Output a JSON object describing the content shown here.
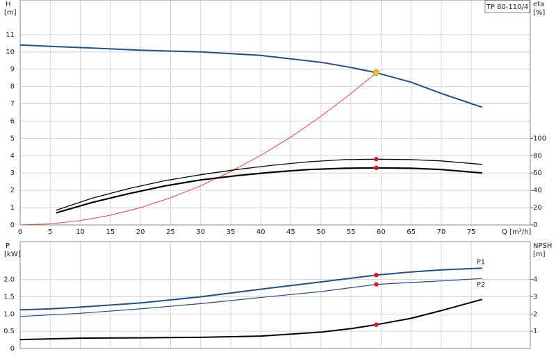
{
  "chart_data": [
    {
      "type": "line",
      "title": "TP 80-110/4",
      "x_label": "Q [m³/h]",
      "y_label": "H",
      "y_unit": "[m]",
      "y2_label": "eta",
      "y2_unit": "[%]",
      "xlim": [
        0,
        84.8
      ],
      "xticks": [
        0,
        5,
        10,
        15,
        20,
        25,
        30,
        35,
        40,
        45,
        50,
        55,
        60,
        65,
        70,
        75
      ],
      "ylim": [
        0,
        13
      ],
      "yticks": [
        0,
        1,
        2,
        3,
        4,
        5,
        6,
        7,
        8,
        9,
        10,
        11
      ],
      "y2lim": [
        0,
        260
      ],
      "y2ticks": [
        0,
        20,
        40,
        60,
        80,
        100
      ],
      "grid": true,
      "series": [
        {
          "color": "#1f4e8c",
          "width": 2,
          "x": [
            0,
            5,
            10,
            20,
            30,
            40,
            50,
            55,
            59.2,
            65,
            70,
            76.8
          ],
          "values": [
            10.4,
            10.32,
            10.25,
            10.1,
            10.0,
            9.8,
            9.4,
            9.1,
            8.8,
            8.25,
            7.6,
            6.8
          ]
        },
        {
          "color": "#ff3b30",
          "width": 1,
          "x": [
            0,
            5,
            10,
            15,
            20,
            25,
            30,
            35,
            40,
            45,
            50,
            55,
            59.2
          ],
          "values": [
            0,
            0.06,
            0.25,
            0.56,
            1.0,
            1.57,
            2.26,
            3.08,
            4.02,
            5.08,
            6.28,
            7.6,
            8.8
          ]
        },
        {
          "color": "#000000",
          "width": 1.3,
          "axis": "y2",
          "x": [
            6,
            12,
            18,
            24,
            30,
            36,
            42,
            48,
            54,
            59.2,
            65,
            70,
            76.8
          ],
          "values": [
            17,
            31,
            42,
            51,
            58,
            64,
            69,
            73,
            75.5,
            76,
            75.5,
            74,
            70
          ]
        },
        {
          "color": "#000000",
          "width": 2.2,
          "axis": "y2",
          "x": [
            6,
            12,
            18,
            24,
            30,
            36,
            42,
            48,
            54,
            59.2,
            65,
            70,
            76.8
          ],
          "values": [
            14,
            26,
            36,
            45,
            52,
            57,
            61,
            64,
            65.5,
            66,
            65.5,
            64,
            60
          ]
        }
      ],
      "points": [
        {
          "x": 59.2,
          "y": 8.8,
          "color": "#f5c518"
        },
        {
          "x": 59.2,
          "y": 76,
          "color": "#e8141c",
          "axis": "y2"
        },
        {
          "x": 59.2,
          "y": 66,
          "color": "#e8141c",
          "axis": "y2"
        }
      ]
    },
    {
      "type": "line",
      "y_label": "P",
      "y_unit": "[kW]",
      "y2_label": "NPSH",
      "y2_unit": "[m]",
      "xlim": [
        0,
        84.8
      ],
      "xticks": [
        0,
        5,
        10,
        15,
        20,
        25,
        30,
        35,
        40,
        45,
        50,
        55,
        60,
        65,
        70,
        75
      ],
      "ylim": [
        0,
        3.1
      ],
      "yticks": [
        0,
        0.5,
        {
          "value": 1,
          "label": "1.0"
        },
        1.5,
        {
          "value": 2,
          "label": "2.0"
        }
      ],
      "y2lim": [
        0,
        6.2
      ],
      "y2ticks": [
        1,
        2,
        3,
        4
      ],
      "grid": true,
      "series": [
        {
          "name": "P1",
          "color": "#1f4e8c",
          "width": 2,
          "x": [
            0,
            5,
            10,
            20,
            30,
            40,
            50,
            59.2,
            65,
            70,
            76.8
          ],
          "values": [
            1.12,
            1.15,
            1.2,
            1.32,
            1.5,
            1.72,
            1.93,
            2.13,
            2.22,
            2.28,
            2.33
          ]
        },
        {
          "name": "P2",
          "color": "#1f4e8c",
          "width": 1.2,
          "x": [
            0,
            10,
            20,
            30,
            40,
            50,
            59.2,
            70,
            76.8
          ],
          "values": [
            0.93,
            1.02,
            1.15,
            1.3,
            1.48,
            1.65,
            1.86,
            1.96,
            2.03
          ]
        },
        {
          "color": "#000000",
          "width": 2,
          "axis": "y2",
          "x": [
            0,
            10,
            20,
            30,
            40,
            50,
            55,
            59.2,
            65,
            70,
            76.8
          ],
          "values": [
            0.52,
            0.6,
            0.62,
            0.65,
            0.72,
            0.95,
            1.15,
            1.38,
            1.75,
            2.2,
            2.85
          ]
        }
      ],
      "points": [
        {
          "x": 59.2,
          "y": 2.13,
          "color": "#e8141c"
        },
        {
          "x": 59.2,
          "y": 1.86,
          "color": "#e8141c"
        },
        {
          "x": 59.2,
          "y": 1.38,
          "color": "#e8141c",
          "axis": "y2"
        }
      ]
    }
  ]
}
